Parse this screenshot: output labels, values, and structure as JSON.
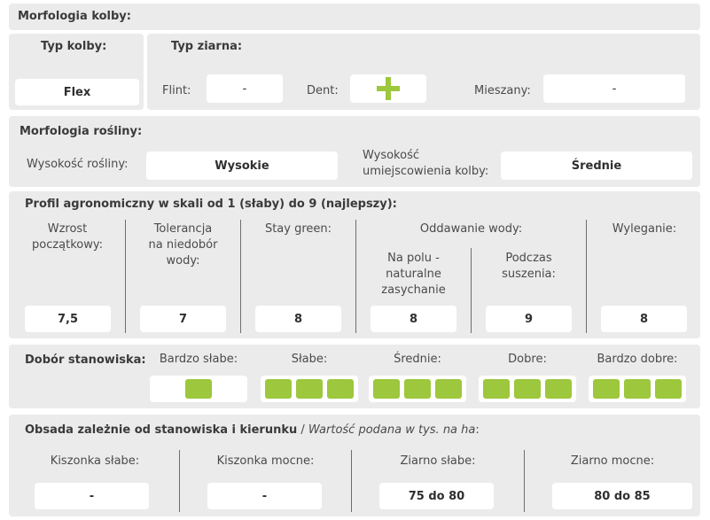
{
  "morfologia_kolby": {
    "title": "Morfologia kolby:",
    "typ_kolby_label": "Typ kolby:",
    "typ_kolby_value": "Flex",
    "typ_ziarna_label": "Typ ziarna:",
    "flint_label": "Flint:",
    "flint_value": "-",
    "dent_label": "Dent:",
    "dent_icon": "plus-icon",
    "mieszany_label": "Mieszany:",
    "mieszany_value": "-"
  },
  "morfologia_rosliny": {
    "title": "Morfologia rośliny:",
    "wysokosc_label": "Wysokość rośliny:",
    "wysokosc_value": "Wysokie",
    "kolba_label_line1": "Wysokość",
    "kolba_label_line2": "umiejscowienia kolby:",
    "kolba_value": "Średnie"
  },
  "profil": {
    "title": "Profil agronomiczny w skali od 1 (słaby) do 9 (najlepszy):",
    "oddawanie_label": "Oddawanie wody:",
    "columns": [
      {
        "label_lines": [
          "Wzrost",
          "początkowy:"
        ],
        "value": "7,5"
      },
      {
        "label_lines": [
          "Tolerancja",
          "na niedobór",
          "wody:"
        ],
        "value": "7"
      },
      {
        "label_lines": [
          "Stay green:"
        ],
        "value": "8"
      },
      {
        "label_lines": [
          "Na polu -",
          "naturalne",
          "zasychanie"
        ],
        "value": "8"
      },
      {
        "label_lines": [
          "Podczas",
          "suszenia:"
        ],
        "value": "9"
      },
      {
        "label_lines": [
          "Wyleganie:"
        ],
        "value": "8"
      }
    ]
  },
  "dobor": {
    "title": "Dobór stanowiska:",
    "accent_color": "#9dc73d",
    "categories": [
      {
        "label": "Bardzo słabe:",
        "filled": 1
      },
      {
        "label": "Słabe:",
        "filled": 3
      },
      {
        "label": "Średnie:",
        "filled": 3
      },
      {
        "label": "Dobre:",
        "filled": 3
      },
      {
        "label": "Bardzo dobre:",
        "filled": 3
      }
    ]
  },
  "obsada": {
    "title_bold": "Obsada zależnie od stanowiska i kierunku",
    "title_sep": " / ",
    "title_italic": "Wartość podana w tys. na ha",
    "title_colon": ":",
    "columns": [
      {
        "label": "Kiszonka słabe:",
        "value": "-"
      },
      {
        "label": "Kiszonka mocne:",
        "value": "-"
      },
      {
        "label": "Ziarno słabe:",
        "value": "75 do 80"
      },
      {
        "label": "Ziarno mocne:",
        "value": "80 do 85"
      }
    ]
  }
}
